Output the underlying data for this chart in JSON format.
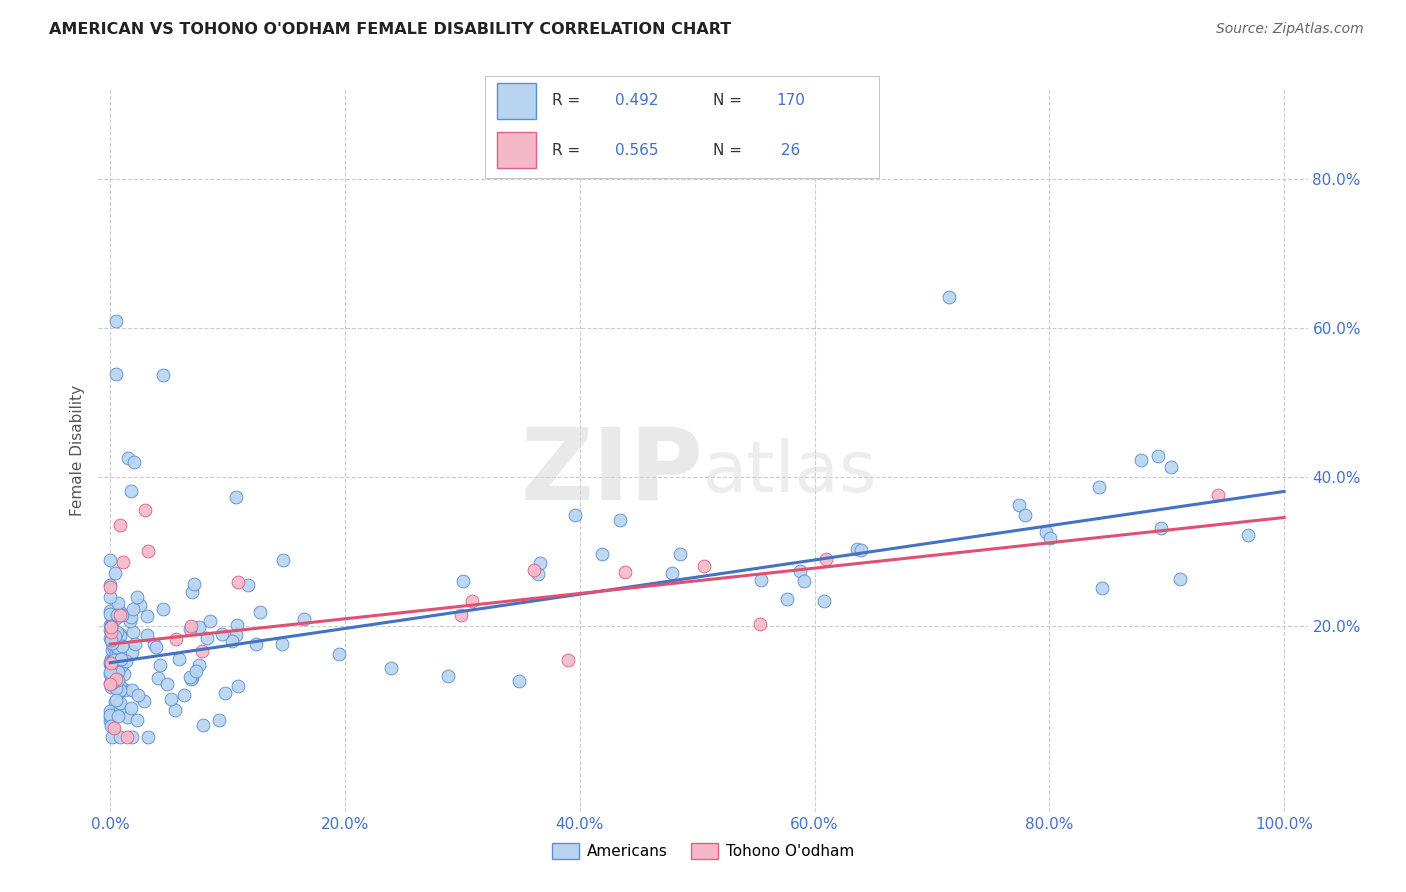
{
  "title": "AMERICAN VS TOHONO O'ODHAM FEMALE DISABILITY CORRELATION CHART",
  "source": "Source: ZipAtlas.com",
  "ylabel": "Female Disability",
  "watermark_zip": "ZIP",
  "watermark_atlas": "atlas",
  "legend_labels": [
    "Americans",
    "Tohono O'odham"
  ],
  "r_american": 0.492,
  "n_american": 170,
  "r_tohono": 0.565,
  "n_tohono": 26,
  "color_american_fill": "#b8d4f0",
  "color_american_edge": "#5b8fd4",
  "color_tohono_fill": "#f5b8c8",
  "color_tohono_edge": "#e06080",
  "color_line_american": "#4472c4",
  "color_line_tohono": "#e05070",
  "background_color": "#ffffff",
  "grid_color": "#cccccc",
  "title_color": "#222222",
  "source_color": "#666666",
  "tick_color": "#4472c4",
  "ylabel_color": "#555555",
  "xlim": [
    -0.01,
    1.02
  ],
  "ylim": [
    -0.05,
    0.92
  ],
  "xtick_vals": [
    0.0,
    0.2,
    0.4,
    0.6,
    0.8,
    1.0
  ],
  "xtick_labels": [
    "0.0%",
    "20.0%",
    "40.0%",
    "60.0%",
    "80.0%",
    "100.0%"
  ],
  "ytick_vals": [
    0.2,
    0.4,
    0.6,
    0.8
  ],
  "ytick_labels": [
    "20.0%",
    "40.0%",
    "60.0%",
    "80.0%"
  ],
  "line_am_x0": 0.0,
  "line_am_y0": 0.15,
  "line_am_x1": 1.0,
  "line_am_y1": 0.38,
  "line_to_x0": 0.0,
  "line_to_y0": 0.175,
  "line_to_x1": 1.0,
  "line_to_y1": 0.345
}
